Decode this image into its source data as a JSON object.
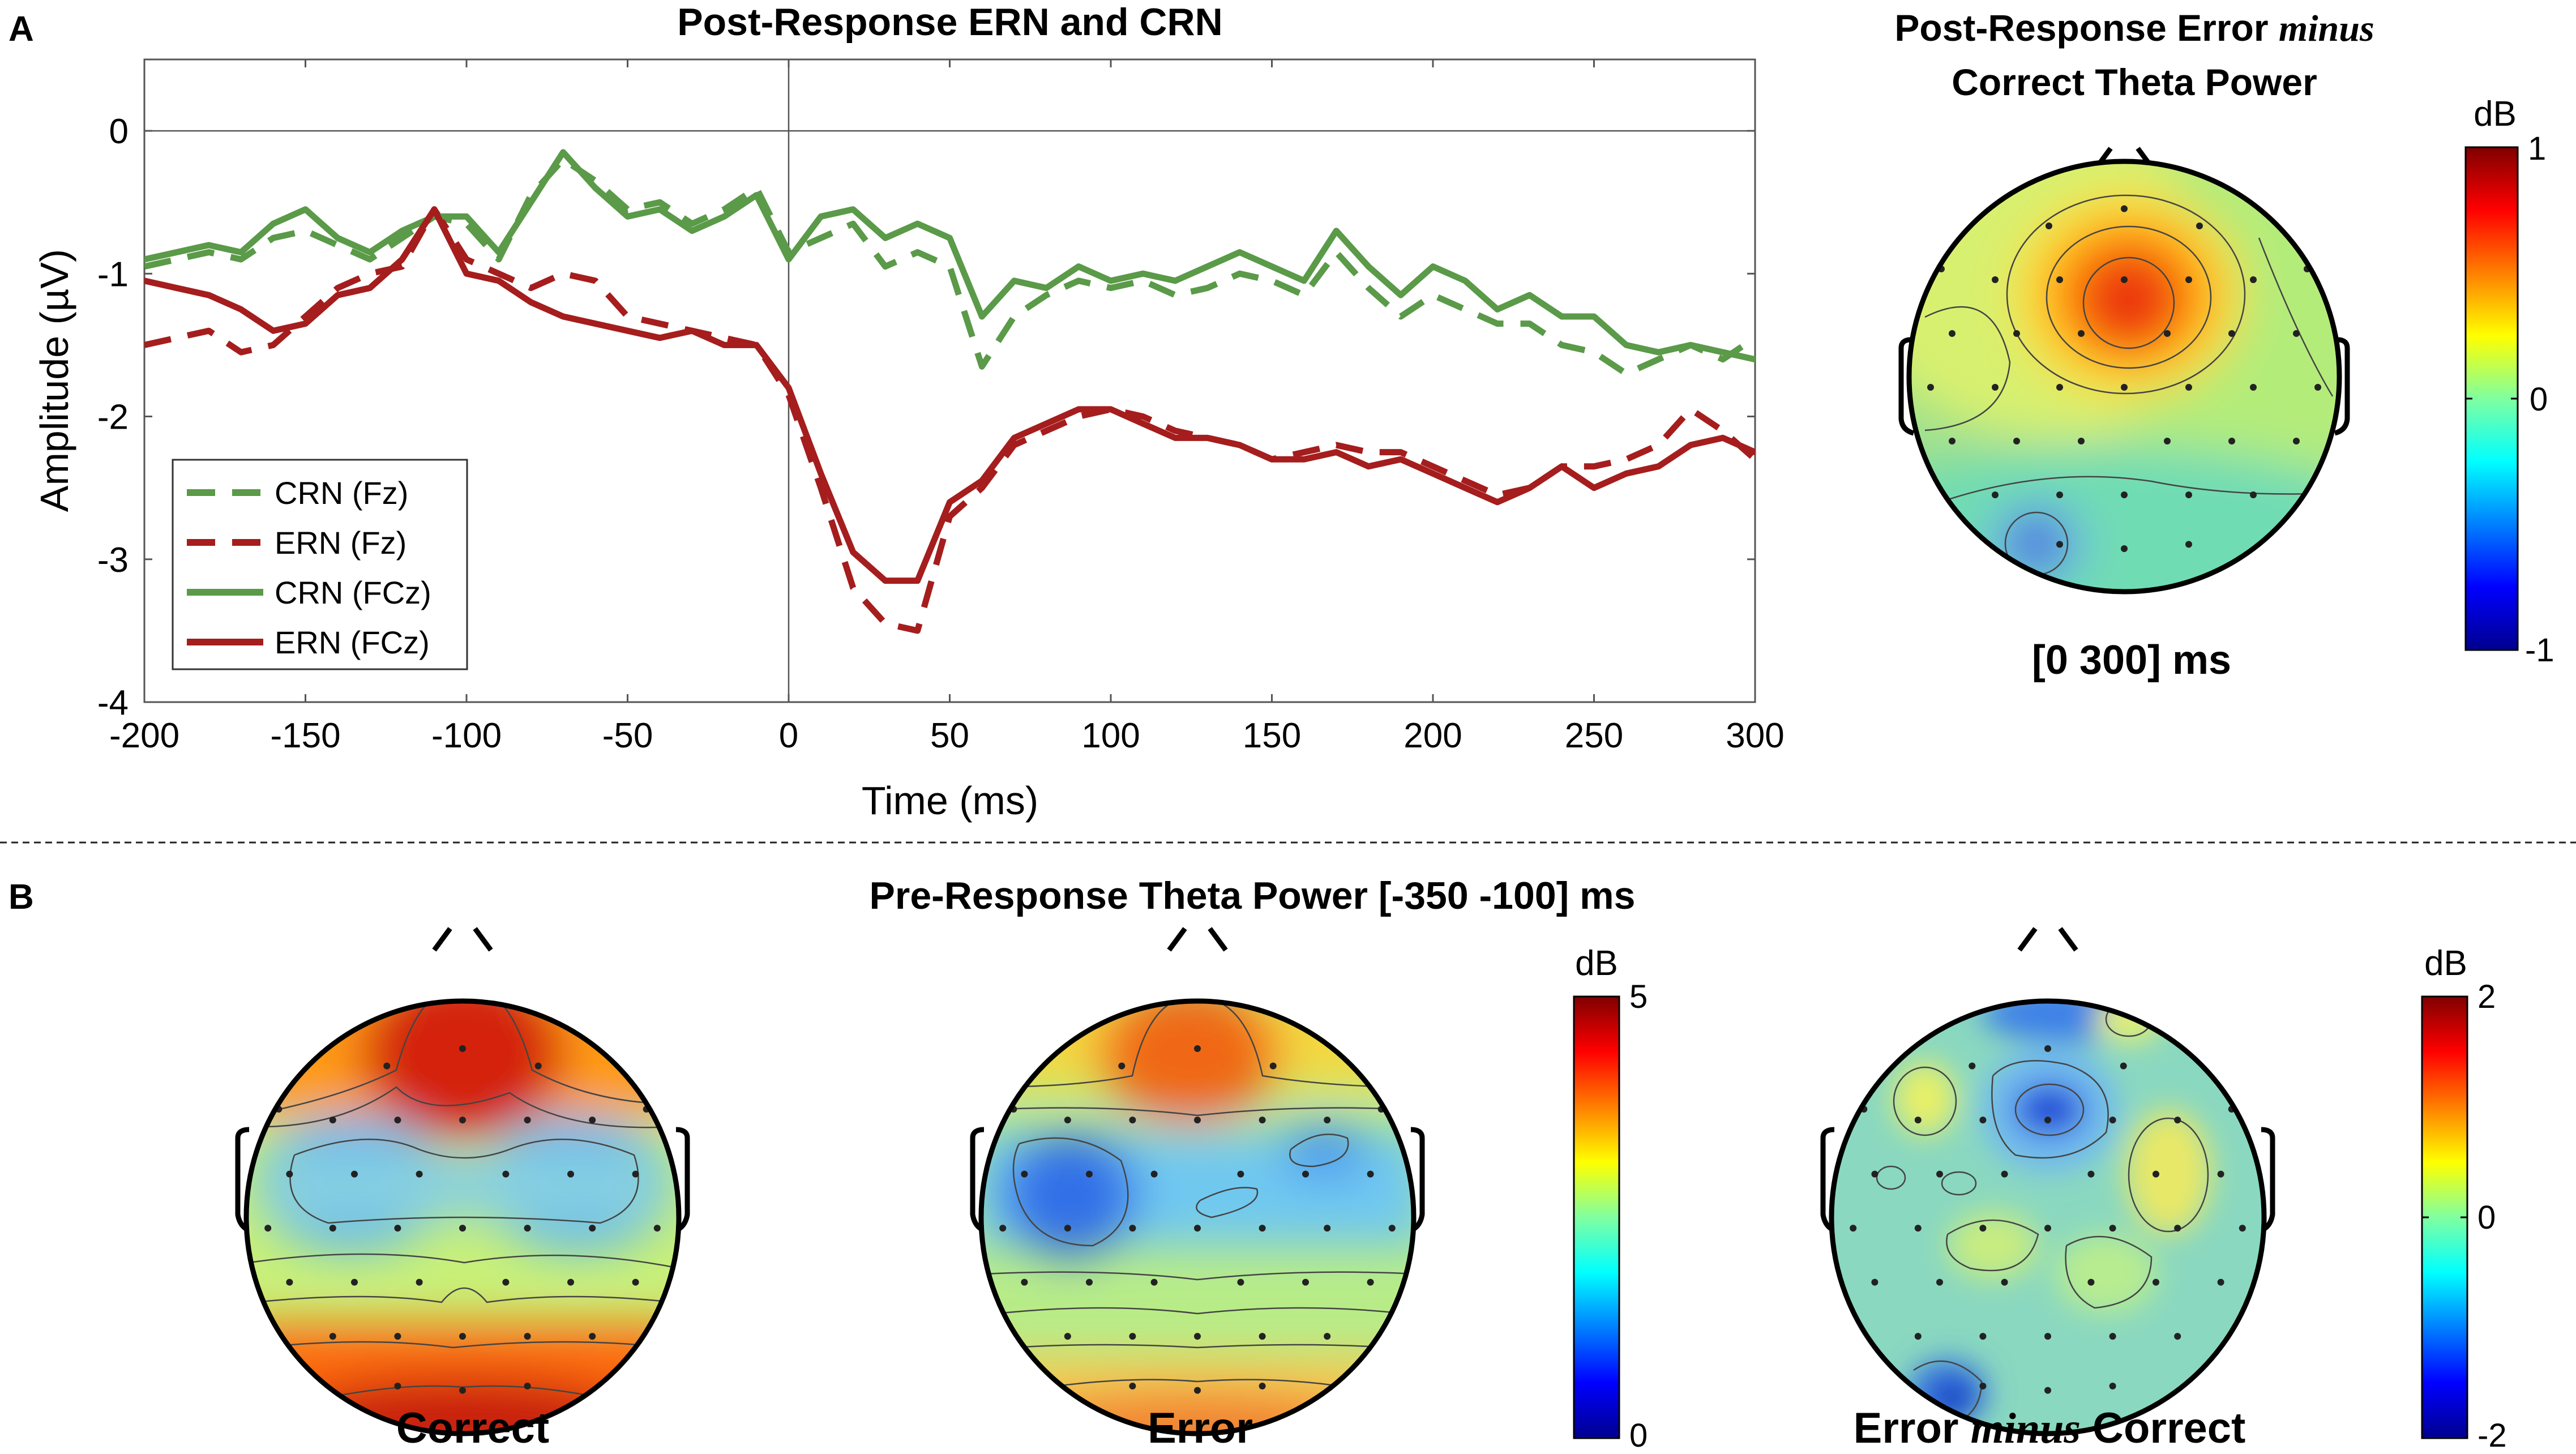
{
  "panel_a": {
    "letter": "A",
    "title": "Post-Response ERN and CRN",
    "topo_title_line1_a": "Post-Response Error ",
    "topo_title_line1_b": "minus",
    "topo_title_line2": "Correct Theta Power",
    "topo_caption": "[0 300] ms",
    "colorbar": {
      "unit": "dB",
      "max_label": "1",
      "mid_label": "0",
      "min_label": "-1"
    }
  },
  "panel_b": {
    "letter": "B",
    "title": "Pre-Response Theta Power [-350 -100] ms",
    "caption_correct": "Correct",
    "caption_error": "Error",
    "caption_diff_a": "Error ",
    "caption_diff_b": "minus",
    "caption_diff_c": " Correct",
    "colorbar_power": {
      "unit": "dB",
      "max_label": "5",
      "min_label": "0"
    },
    "colorbar_diff": {
      "unit": "dB",
      "max_label": "2",
      "mid_label": "0",
      "min_label": "-2"
    }
  },
  "chart_data": {
    "type": "line",
    "title": "Post-Response ERN and CRN",
    "xlabel": "Time (ms)",
    "ylabel": "Amplitude (µV)",
    "xlim": [
      -200,
      300
    ],
    "ylim": [
      -4,
      0.5
    ],
    "xticks": [
      -200,
      -150,
      -100,
      -50,
      0,
      50,
      100,
      150,
      200,
      250,
      300
    ],
    "yticks": [
      0,
      -1,
      -2,
      -3,
      -4
    ],
    "legend_position": "lower-left",
    "series": [
      {
        "name": "CRN (Fz)",
        "color": "#5a9a48",
        "style": "dashed",
        "x": [
          -200,
          -180,
          -170,
          -160,
          -150,
          -140,
          -130,
          -120,
          -110,
          -100,
          -90,
          -80,
          -70,
          -60,
          -50,
          -40,
          -30,
          -20,
          -10,
          0,
          10,
          20,
          30,
          40,
          50,
          60,
          70,
          80,
          90,
          100,
          110,
          120,
          130,
          140,
          150,
          160,
          170,
          180,
          190,
          200,
          210,
          220,
          230,
          240,
          250,
          260,
          270,
          280,
          290,
          300
        ],
        "y": [
          -0.95,
          -0.85,
          -0.9,
          -0.75,
          -0.7,
          -0.8,
          -0.9,
          -0.75,
          -0.6,
          -0.65,
          -0.9,
          -0.45,
          -0.2,
          -0.35,
          -0.55,
          -0.5,
          -0.65,
          -0.55,
          -0.4,
          -0.85,
          -0.75,
          -0.65,
          -0.95,
          -0.85,
          -0.95,
          -1.65,
          -1.3,
          -1.15,
          -1.05,
          -1.1,
          -1.05,
          -1.15,
          -1.1,
          -1.0,
          -1.05,
          -1.15,
          -0.85,
          -1.1,
          -1.3,
          -1.15,
          -1.25,
          -1.35,
          -1.35,
          -1.5,
          -1.55,
          -1.7,
          -1.6,
          -1.5,
          -1.6,
          -1.45
        ]
      },
      {
        "name": "ERN (Fz)",
        "color": "#a51d1d",
        "style": "dashed",
        "x": [
          -200,
          -190,
          -180,
          -170,
          -160,
          -150,
          -140,
          -130,
          -120,
          -110,
          -100,
          -90,
          -80,
          -70,
          -60,
          -50,
          -40,
          -30,
          -20,
          -10,
          0,
          10,
          20,
          30,
          40,
          50,
          60,
          70,
          80,
          90,
          100,
          110,
          120,
          130,
          140,
          150,
          160,
          170,
          180,
          190,
          200,
          210,
          220,
          230,
          240,
          250,
          260,
          270,
          280,
          290,
          300
        ],
        "y": [
          -1.5,
          -1.45,
          -1.4,
          -1.55,
          -1.5,
          -1.3,
          -1.1,
          -1.0,
          -0.95,
          -0.55,
          -0.9,
          -1.0,
          -1.1,
          -1.0,
          -1.05,
          -1.3,
          -1.35,
          -1.4,
          -1.45,
          -1.5,
          -1.85,
          -2.5,
          -3.2,
          -3.45,
          -3.5,
          -2.7,
          -2.5,
          -2.2,
          -2.1,
          -2.0,
          -1.95,
          -2.0,
          -2.1,
          -2.15,
          -2.2,
          -2.3,
          -2.25,
          -2.2,
          -2.25,
          -2.25,
          -2.35,
          -2.45,
          -2.55,
          -2.5,
          -2.35,
          -2.35,
          -2.3,
          -2.2,
          -1.95,
          -2.1,
          -2.3
        ]
      },
      {
        "name": "CRN (FCz)",
        "color": "#5a9a48",
        "style": "solid",
        "x": [
          -200,
          -180,
          -170,
          -160,
          -150,
          -140,
          -130,
          -120,
          -110,
          -100,
          -90,
          -80,
          -70,
          -60,
          -50,
          -40,
          -30,
          -20,
          -10,
          0,
          10,
          20,
          30,
          40,
          50,
          60,
          70,
          80,
          90,
          100,
          110,
          120,
          130,
          140,
          150,
          160,
          170,
          180,
          190,
          200,
          210,
          220,
          230,
          240,
          250,
          260,
          270,
          280,
          290,
          300
        ],
        "y": [
          -0.9,
          -0.8,
          -0.85,
          -0.65,
          -0.55,
          -0.75,
          -0.85,
          -0.7,
          -0.6,
          -0.6,
          -0.85,
          -0.5,
          -0.15,
          -0.4,
          -0.6,
          -0.55,
          -0.7,
          -0.6,
          -0.45,
          -0.9,
          -0.6,
          -0.55,
          -0.75,
          -0.65,
          -0.75,
          -1.3,
          -1.05,
          -1.1,
          -0.95,
          -1.05,
          -1.0,
          -1.05,
          -0.95,
          -0.85,
          -0.95,
          -1.05,
          -0.7,
          -0.95,
          -1.15,
          -0.95,
          -1.05,
          -1.25,
          -1.15,
          -1.3,
          -1.3,
          -1.5,
          -1.55,
          -1.5,
          -1.55,
          -1.6
        ]
      },
      {
        "name": "ERN (FCz)",
        "color": "#a51d1d",
        "style": "solid",
        "x": [
          -200,
          -190,
          -180,
          -170,
          -160,
          -150,
          -140,
          -130,
          -120,
          -110,
          -100,
          -90,
          -80,
          -70,
          -60,
          -50,
          -40,
          -30,
          -20,
          -10,
          0,
          10,
          20,
          30,
          40,
          50,
          60,
          70,
          80,
          90,
          100,
          110,
          120,
          130,
          140,
          150,
          160,
          170,
          180,
          190,
          200,
          210,
          220,
          230,
          240,
          250,
          260,
          270,
          280,
          290,
          300
        ],
        "y": [
          -1.05,
          -1.1,
          -1.15,
          -1.25,
          -1.4,
          -1.35,
          -1.15,
          -1.1,
          -0.9,
          -0.55,
          -1.0,
          -1.05,
          -1.2,
          -1.3,
          -1.35,
          -1.4,
          -1.45,
          -1.4,
          -1.5,
          -1.5,
          -1.8,
          -2.4,
          -2.95,
          -3.15,
          -3.15,
          -2.6,
          -2.45,
          -2.15,
          -2.05,
          -1.95,
          -1.95,
          -2.05,
          -2.15,
          -2.15,
          -2.2,
          -2.3,
          -2.3,
          -2.25,
          -2.35,
          -2.3,
          -2.4,
          -2.5,
          -2.6,
          -2.5,
          -2.35,
          -2.5,
          -2.4,
          -2.35,
          -2.2,
          -2.15,
          -2.25
        ]
      }
    ]
  }
}
